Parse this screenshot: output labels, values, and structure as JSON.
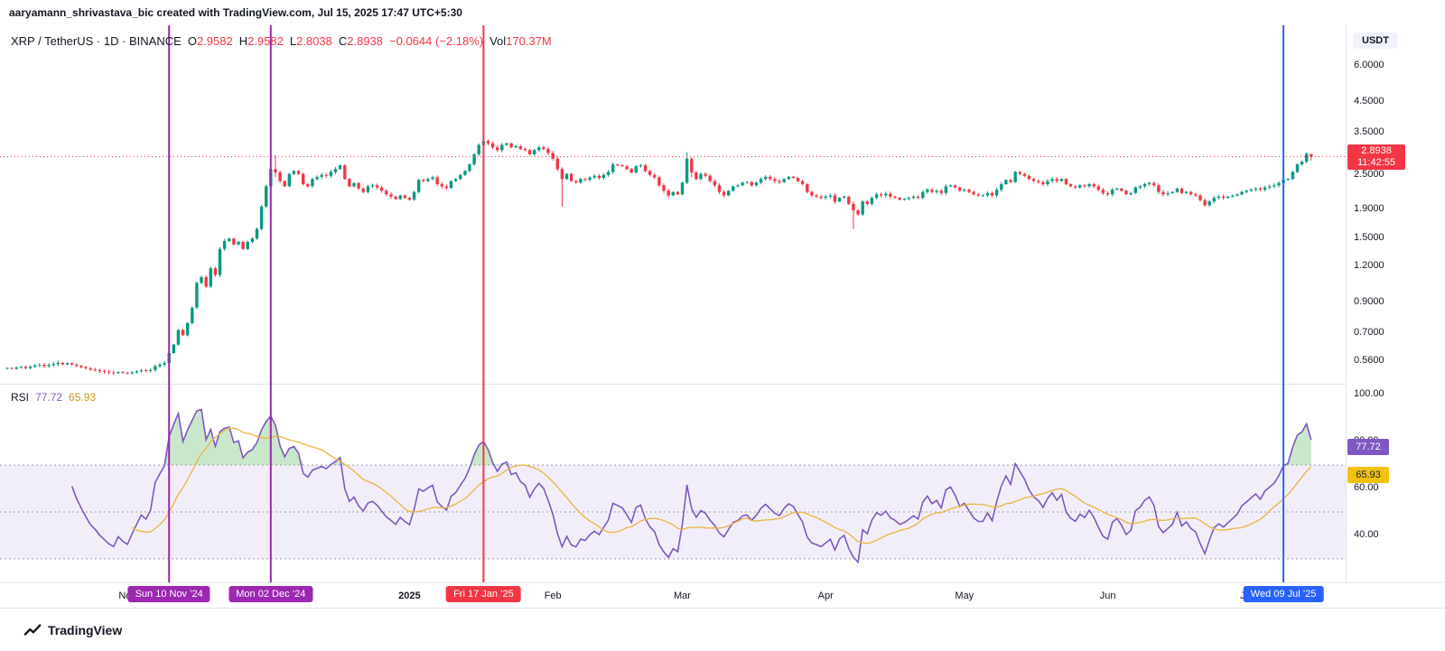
{
  "attribution": "aaryamann_shrivastava_bic created with TradingView.com, Jul 15, 2025 17:47 UTC+5:30",
  "header": {
    "title": "XRP / TetherUS · 1D · BINANCE",
    "ohlc": {
      "o_label": "O",
      "o": "2.9582",
      "h_label": "H",
      "h": "2.9582",
      "l_label": "L",
      "l": "2.8038",
      "c_label": "C",
      "c": "2.8938",
      "change": "−0.0644 (−2.18%)",
      "vol_label": "Vol",
      "vol": "170.37M"
    }
  },
  "price_axis": {
    "currency_badge": "USDT",
    "labels": [
      {
        "text": "6.0000",
        "value": 6.0
      },
      {
        "text": "4.5000",
        "value": 4.5
      },
      {
        "text": "3.5000",
        "value": 3.5
      },
      {
        "text": "2.5000",
        "value": 2.5
      },
      {
        "text": "1.9000",
        "value": 1.9
      },
      {
        "text": "1.5000",
        "value": 1.5
      },
      {
        "text": "1.2000",
        "value": 1.2
      },
      {
        "text": "0.9000",
        "value": 0.9
      },
      {
        "text": "0.7000",
        "value": 0.7
      },
      {
        "text": "0.5600",
        "value": 0.56
      }
    ],
    "current_price": {
      "text": "2.8938",
      "countdown": "11:42:55",
      "value": 2.8938,
      "color": "#F23645"
    }
  },
  "rsi_pane": {
    "title": "RSI",
    "value": "77.72",
    "ma_value": "65.93",
    "levels": {
      "upper": 70,
      "middle": 50,
      "lower": 30
    },
    "labels": [
      {
        "text": "100.00",
        "value": 100
      },
      {
        "text": "80.00",
        "value": 80
      },
      {
        "text": "60.00",
        "value": 60
      },
      {
        "text": "40.00",
        "value": 40
      }
    ],
    "badges": [
      {
        "text": "77.72",
        "value": 77.72,
        "bg": "#7E57C2",
        "fg": "#ffffff"
      },
      {
        "text": "65.93",
        "value": 65.93,
        "bg": "#F0C20C",
        "fg": "#1E222D"
      }
    ]
  },
  "time_axis": {
    "labels": [
      {
        "text": "Nov",
        "date": "2024-11-01"
      },
      {
        "text": "Dec",
        "date": "2024-12-01"
      },
      {
        "text": "2025",
        "date": "2025-01-01",
        "bold": true
      },
      {
        "text": "Feb",
        "date": "2025-02-01"
      },
      {
        "text": "Mar",
        "date": "2025-03-01"
      },
      {
        "text": "Apr",
        "date": "2025-04-01"
      },
      {
        "text": "May",
        "date": "2025-05-01"
      },
      {
        "text": "Jun",
        "date": "2025-06-01"
      },
      {
        "text": "Jul",
        "date": "2025-07-01"
      }
    ],
    "event_badges": [
      {
        "text": "Sun 10 Nov ’24",
        "date": "2024-11-10",
        "color": "#9C27B0"
      },
      {
        "text": "Mon 02 Dec ’24",
        "date": "2024-12-02",
        "color": "#9C27B0"
      },
      {
        "text": "Fri 17 Jan ’25",
        "date": "2025-01-17",
        "color": "#F23645"
      },
      {
        "text": "Wed 09 Jul ’25",
        "date": "2025-07-09",
        "color": "#2962FF"
      }
    ]
  },
  "footer": {
    "logo_text": "TradingView"
  },
  "colors": {
    "red": "#F23645",
    "green": "#089981",
    "text": "#131722",
    "grid": "#E0E3EB",
    "rsi_purple": "#7E57C2",
    "rsi_yellow": "#C99618",
    "currency_bg": "#F0F3FA"
  },
  "chart_data": {
    "type": "candlestick+rsi",
    "symbol": "XRP/USDT",
    "exchange": "BINANCE",
    "timeframe": "1D",
    "price_scale": "log",
    "rsi_period": 14,
    "start_date": "2024-10-06",
    "last": {
      "open": 2.9582,
      "high": 2.9582,
      "low": 2.8038,
      "close": 2.8938,
      "change": -0.0644,
      "change_pct": -2.18,
      "volume": "170.37M",
      "rsi": 77.72,
      "rsi_ma": 65.93
    },
    "closes": [
      0.53,
      0.527,
      0.532,
      0.535,
      0.53,
      0.536,
      0.541,
      0.544,
      0.538,
      0.543,
      0.548,
      0.553,
      0.546,
      0.551,
      0.545,
      0.539,
      0.534,
      0.529,
      0.524,
      0.521,
      0.517,
      0.514,
      0.511,
      0.509,
      0.513,
      0.51,
      0.508,
      0.512,
      0.516,
      0.52,
      0.518,
      0.522,
      0.538,
      0.545,
      0.552,
      0.598,
      0.64,
      0.72,
      0.69,
      0.76,
      0.86,
      1.05,
      1.1,
      1.02,
      1.18,
      1.12,
      1.38,
      1.47,
      1.5,
      1.43,
      1.46,
      1.38,
      1.46,
      1.5,
      1.62,
      1.94,
      2.28,
      2.62,
      2.55,
      2.38,
      2.28,
      2.52,
      2.58,
      2.52,
      2.32,
      2.28,
      2.42,
      2.46,
      2.5,
      2.48,
      2.56,
      2.62,
      2.7,
      2.42,
      2.28,
      2.34,
      2.24,
      2.18,
      2.28,
      2.3,
      2.26,
      2.2,
      2.14,
      2.1,
      2.06,
      2.12,
      2.08,
      2.05,
      2.18,
      2.4,
      2.38,
      2.42,
      2.45,
      2.32,
      2.28,
      2.25,
      2.38,
      2.42,
      2.5,
      2.58,
      2.72,
      2.95,
      3.18,
      3.28,
      3.22,
      3.12,
      3.05,
      3.18,
      3.22,
      3.12,
      3.15,
      3.08,
      3.05,
      2.95,
      3.05,
      3.12,
      3.08,
      2.98,
      2.85,
      2.62,
      2.42,
      2.52,
      2.38,
      2.35,
      2.42,
      2.4,
      2.45,
      2.48,
      2.44,
      2.5,
      2.56,
      2.72,
      2.7,
      2.68,
      2.62,
      2.55,
      2.68,
      2.7,
      2.58,
      2.5,
      2.45,
      2.3,
      2.2,
      2.12,
      2.18,
      2.14,
      2.35,
      2.85,
      2.55,
      2.42,
      2.52,
      2.48,
      2.38,
      2.3,
      2.18,
      2.12,
      2.2,
      2.28,
      2.3,
      2.35,
      2.36,
      2.3,
      2.35,
      2.42,
      2.46,
      2.42,
      2.38,
      2.36,
      2.42,
      2.46,
      2.44,
      2.38,
      2.32,
      2.18,
      2.12,
      2.1,
      2.08,
      2.1,
      2.12,
      2.02,
      2.08,
      2.1,
      1.98,
      1.88,
      1.82,
      2.02,
      1.98,
      2.08,
      2.14,
      2.12,
      2.15,
      2.1,
      2.08,
      2.05,
      2.06,
      2.08,
      2.1,
      2.08,
      2.18,
      2.22,
      2.18,
      2.2,
      2.16,
      2.28,
      2.3,
      2.26,
      2.2,
      2.22,
      2.18,
      2.14,
      2.12,
      2.12,
      2.16,
      2.12,
      2.22,
      2.32,
      2.4,
      2.36,
      2.56,
      2.52,
      2.48,
      2.42,
      2.38,
      2.36,
      2.32,
      2.38,
      2.42,
      2.38,
      2.42,
      2.32,
      2.28,
      2.26,
      2.3,
      2.28,
      2.32,
      2.28,
      2.22,
      2.16,
      2.14,
      2.22,
      2.24,
      2.2,
      2.14,
      2.16,
      2.26,
      2.28,
      2.32,
      2.34,
      2.3,
      2.18,
      2.14,
      2.16,
      2.18,
      2.24,
      2.16,
      2.18,
      2.14,
      2.12,
      2.04,
      1.96,
      2.02,
      2.08,
      2.1,
      2.08,
      2.1,
      2.12,
      2.14,
      2.18,
      2.2,
      2.22,
      2.24,
      2.22,
      2.26,
      2.28,
      2.3,
      2.34,
      2.4,
      2.42,
      2.56,
      2.72,
      2.78,
      2.96,
      2.8938
    ],
    "ohlc_overrides": {
      "2024-12-03": [
        2.62,
        2.92,
        2.45,
        2.55
      ],
      "2025-01-17": [
        3.18,
        3.4,
        3.1,
        3.28
      ],
      "2025-02-03": [
        2.62,
        2.66,
        1.94,
        2.42
      ],
      "2025-03-02": [
        2.35,
        3.0,
        2.32,
        2.85
      ],
      "2025-03-03": [
        2.85,
        2.88,
        2.45,
        2.55
      ],
      "2025-04-07": [
        1.98,
        2.02,
        1.62,
        1.88
      ],
      "2025-07-15": [
        2.9582,
        2.9582,
        2.8038,
        2.8938
      ]
    },
    "colors": {
      "up": "#089981",
      "down": "#F23645",
      "rsi": "#7E57C2",
      "rsi_ma": "#E9B64A",
      "band": "rgba(126,87,194,0.10)",
      "overbought_fill": "rgba(76,175,80,0.30)"
    }
  }
}
